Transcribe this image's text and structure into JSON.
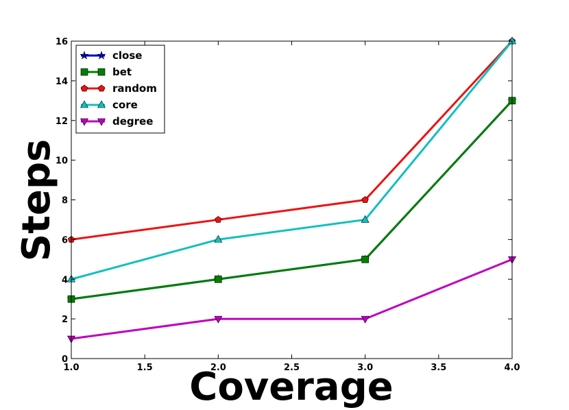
{
  "chart_data": {
    "type": "line",
    "title": "",
    "xlabel": "Coverage",
    "ylabel": "Steps",
    "xlim": [
      1.0,
      4.0
    ],
    "ylim": [
      0,
      16
    ],
    "xticks": [
      "1.0",
      "1.5",
      "2.0",
      "2.5",
      "3.0",
      "3.5",
      "4.0"
    ],
    "yticks": [
      "0",
      "2",
      "4",
      "6",
      "8",
      "10",
      "12",
      "14",
      "16"
    ],
    "grid": false,
    "legend_position": "top-left",
    "x": [
      1.0,
      2.0,
      3.0,
      4.0
    ],
    "series": [
      {
        "name": "close",
        "values": [
          3,
          4,
          5,
          13
        ],
        "color": "#0000cc",
        "marker": "star"
      },
      {
        "name": "bet",
        "values": [
          3,
          4,
          5,
          13
        ],
        "color": "#007f00",
        "marker": "square"
      },
      {
        "name": "random",
        "values": [
          6,
          7,
          8,
          16
        ],
        "color": "#ee1111",
        "marker": "pentagon"
      },
      {
        "name": "core",
        "values": [
          4,
          6,
          7,
          16
        ],
        "color": "#11bfbf",
        "marker": "triangle-up"
      },
      {
        "name": "degree",
        "values": [
          1,
          2,
          2,
          5
        ],
        "color": "#bf00bf",
        "marker": "triangle-down"
      }
    ]
  }
}
